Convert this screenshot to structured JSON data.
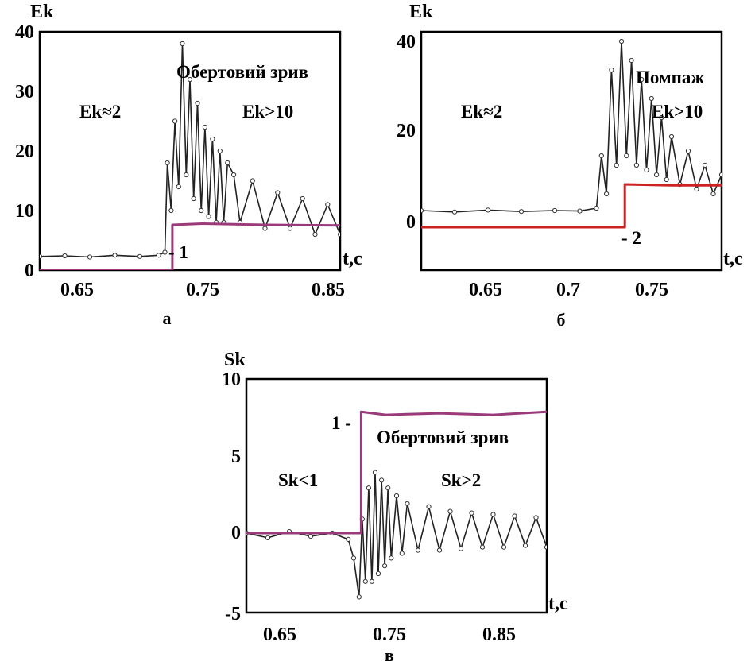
{
  "chart_data": [
    {
      "type": "line",
      "panel": "а",
      "xlabel": "t,c",
      "ylabel": "Ek",
      "xlim": [
        0.62,
        0.86
      ],
      "ylim": [
        0,
        40
      ],
      "x_ticks": [
        0.65,
        0.75,
        0.85
      ],
      "y_ticks": [
        0,
        10,
        20,
        30,
        40
      ],
      "annotations": [
        "Обертовий зрив",
        "Ek≈2",
        "Ek>10"
      ],
      "series": [
        {
          "name": "",
          "color": "#222222",
          "x": [
            0.62,
            0.64,
            0.66,
            0.68,
            0.7,
            0.715,
            0.72,
            0.722,
            0.725,
            0.728,
            0.731,
            0.734,
            0.737,
            0.74,
            0.743,
            0.746,
            0.749,
            0.752,
            0.755,
            0.758,
            0.761,
            0.764,
            0.767,
            0.77,
            0.775,
            0.78,
            0.79,
            0.8,
            0.81,
            0.82,
            0.83,
            0.84,
            0.85,
            0.86
          ],
          "y": [
            2.3,
            2.4,
            2.2,
            2.5,
            2.3,
            2.5,
            3,
            18,
            10,
            25,
            14,
            38,
            16,
            32,
            12,
            28,
            10,
            24,
            9,
            22,
            8,
            20,
            8,
            18,
            16,
            8,
            15,
            7,
            13,
            7,
            12,
            6,
            11,
            6
          ]
        },
        {
          "name": "1",
          "color": "#9a3a7a",
          "x": [
            0.62,
            0.726,
            0.726,
            0.75,
            0.8,
            0.86
          ],
          "y": [
            0,
            0,
            7.6,
            7.8,
            7.6,
            7.5
          ]
        }
      ]
    },
    {
      "type": "line",
      "panel": "б",
      "xlabel": "t,c",
      "ylabel": "Ek",
      "xlim": [
        0.61,
        0.79
      ],
      "ylim": [
        -10,
        40
      ],
      "x_ticks": [
        0.65,
        0.7,
        0.75
      ],
      "y_ticks": [
        0,
        20,
        40
      ],
      "annotations": [
        "Помпаж",
        "Ek≈2",
        "Ek>10"
      ],
      "series": [
        {
          "name": "",
          "color": "#222222",
          "x": [
            0.61,
            0.63,
            0.65,
            0.67,
            0.69,
            0.705,
            0.715,
            0.718,
            0.721,
            0.724,
            0.727,
            0.73,
            0.733,
            0.736,
            0.739,
            0.742,
            0.745,
            0.748,
            0.751,
            0.754,
            0.757,
            0.76,
            0.765,
            0.77,
            0.775,
            0.78,
            0.785,
            0.79
          ],
          "y": [
            2.5,
            2.2,
            2.6,
            2.3,
            2.5,
            2.4,
            3,
            14,
            6,
            32,
            12,
            38,
            14,
            34,
            12,
            30,
            11,
            26,
            10,
            22,
            9,
            18,
            8,
            15,
            7,
            12,
            6,
            10
          ]
        },
        {
          "name": "2",
          "color": "#cc2222",
          "x": [
            0.61,
            0.732,
            0.732,
            0.76,
            0.79
          ],
          "y": [
            -1,
            -1,
            8,
            7.8,
            7.8
          ]
        }
      ]
    },
    {
      "type": "line",
      "panel": "в",
      "xlabel": "t,c",
      "ylabel": "Sk",
      "xlim": [
        0.62,
        0.9
      ],
      "ylim": [
        -5,
        10
      ],
      "x_ticks": [
        0.65,
        0.75,
        0.85
      ],
      "y_ticks": [
        -5,
        0,
        5,
        10
      ],
      "annotations": [
        "Обертовий зрив",
        "Sk<1",
        "Sk>2"
      ],
      "series": [
        {
          "name": "",
          "color": "#222222",
          "x": [
            0.62,
            0.64,
            0.66,
            0.68,
            0.7,
            0.715,
            0.72,
            0.725,
            0.728,
            0.731,
            0.734,
            0.737,
            0.74,
            0.743,
            0.746,
            0.749,
            0.752,
            0.755,
            0.76,
            0.765,
            0.77,
            0.78,
            0.79,
            0.8,
            0.81,
            0.82,
            0.83,
            0.84,
            0.85,
            0.86,
            0.87,
            0.88,
            0.89,
            0.9
          ],
          "y": [
            0.1,
            -0.2,
            0.2,
            -0.1,
            0.1,
            -0.3,
            -1.5,
            -4,
            1,
            -3,
            3,
            -3,
            4,
            -2.5,
            3.5,
            -2,
            3,
            -1.5,
            2.5,
            -1.2,
            2,
            -1,
            1.8,
            -1,
            1.5,
            -0.9,
            1.4,
            -0.8,
            1.3,
            -0.8,
            1.2,
            -0.7,
            1.1,
            -0.8
          ]
        },
        {
          "name": "1",
          "color": "#9a3a7a",
          "x": [
            0.62,
            0.727,
            0.727,
            0.75,
            0.8,
            0.85,
            0.9
          ],
          "y": [
            0.1,
            0.1,
            7.9,
            7.7,
            7.8,
            7.7,
            7.9
          ]
        }
      ]
    }
  ]
}
